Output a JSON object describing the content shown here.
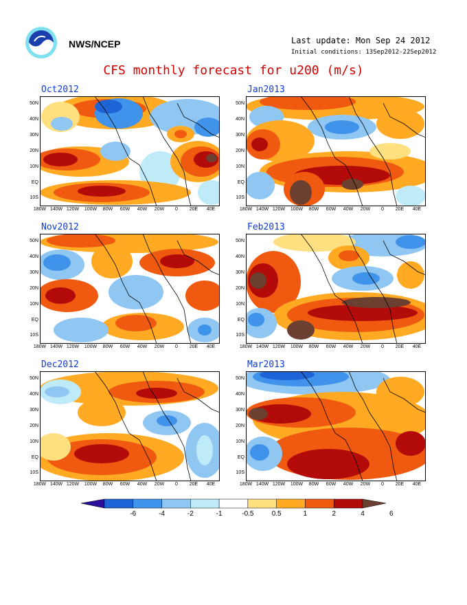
{
  "header": {
    "agency": "NWS/NCEP",
    "last_update": "Last update: Mon Sep 24 2012",
    "initial_conditions": "Initial conditions: 13Sep2012-22Sep2012",
    "title": "CFS monthly forecast for u200 (m/s)"
  },
  "logo": {
    "icon": "noaa-logo-icon"
  },
  "panels": [
    {
      "label": "Oct2012"
    },
    {
      "label": "Jan2013"
    },
    {
      "label": "Nov2012"
    },
    {
      "label": "Feb2013"
    },
    {
      "label": "Dec2012"
    },
    {
      "label": "Mar2013"
    }
  ],
  "map": {
    "lat_labels": [
      "50N",
      "40N",
      "30N",
      "20N",
      "10N",
      "EQ",
      "10S"
    ],
    "lon_labels": [
      "180W",
      "140W",
      "120W",
      "100W",
      "80W",
      "60W",
      "40W",
      "20W",
      "0",
      "20E",
      "40E"
    ]
  },
  "colorbar": {
    "labels": [
      "-6",
      "-4",
      "-2",
      "-1",
      "-0.5",
      "0.5",
      "1",
      "2",
      "4",
      "6"
    ],
    "colors": [
      "#2a0f9a",
      "#1e64d6",
      "#3f93ea",
      "#8fc6f2",
      "#bfeaf8",
      "#ffffff",
      "#ffe080",
      "#ffaa22",
      "#f05a10",
      "#b30a0a",
      "#6b4030"
    ]
  }
}
